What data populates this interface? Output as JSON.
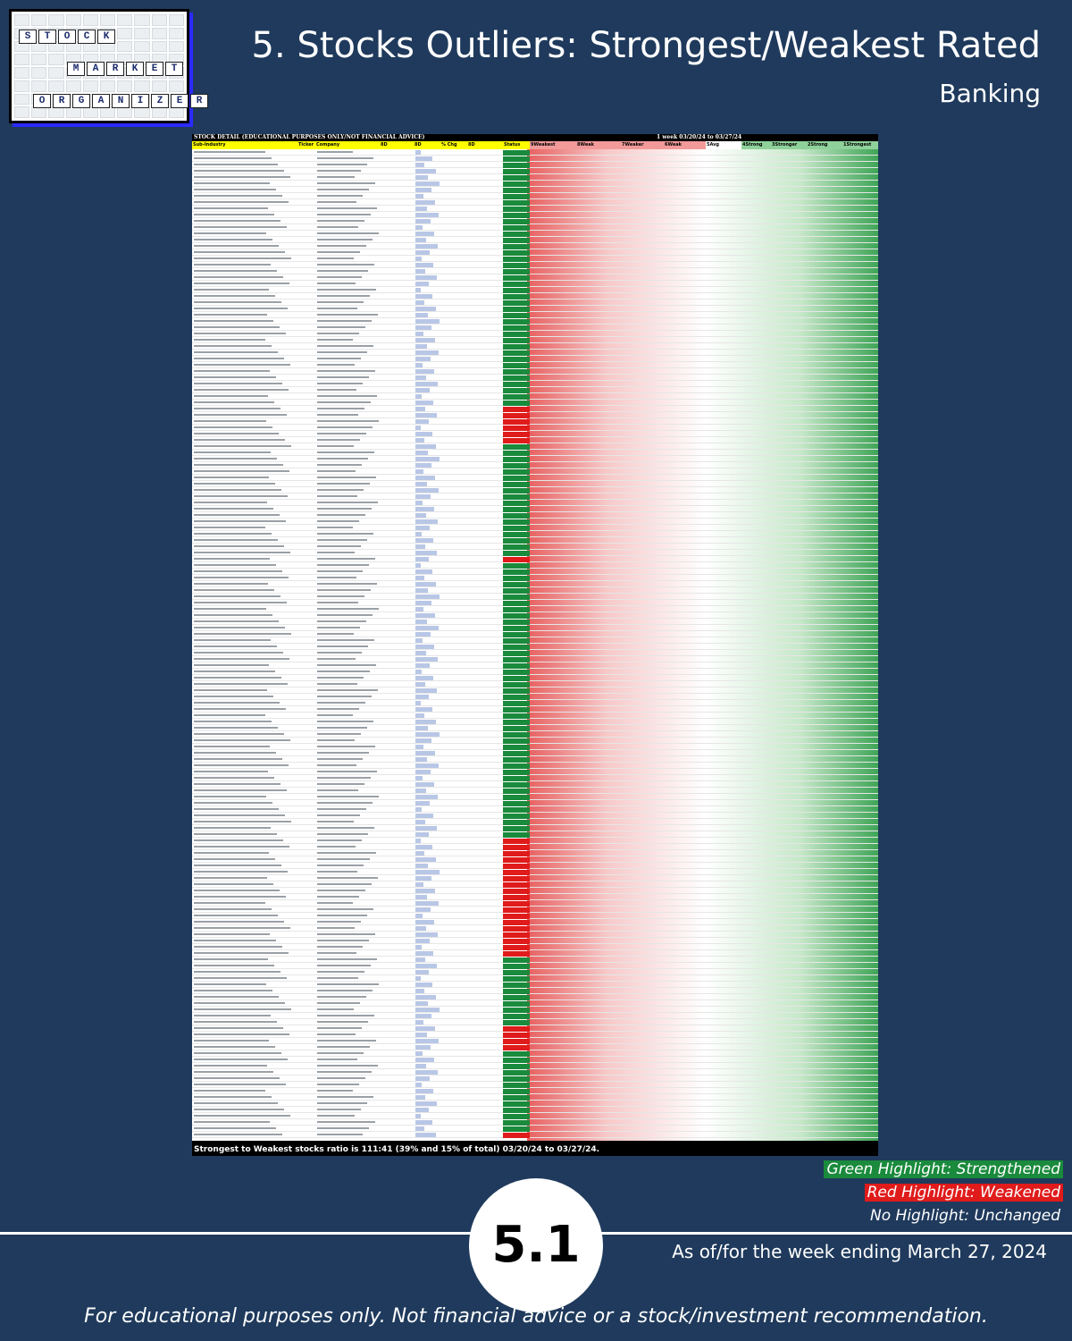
{
  "header": {
    "logo_words": [
      "STOCK",
      "MARKET",
      "ORGANIZER"
    ],
    "title": "5. Stocks Outliers: Strongest/Weakest Rated",
    "subtitle": "Banking"
  },
  "table": {
    "caption_left": "STOCK DETAIL (EDUCATIONAL PURPOSES ONLY/NOT FINANCIAL ADVICE)",
    "caption_right": "1 week 03/20/24 to 03/27/24",
    "columns": [
      "Sub-Industry",
      "Ticker",
      "Company",
      "8D",
      "8D",
      "% Chg",
      "8D",
      "Status",
      "9Weakest",
      "8Weak",
      "7Weaker",
      "6Weak",
      "5Avg",
      "4Strong",
      "3Stronger",
      "2Strong",
      "1Strongest"
    ],
    "summary": "Strongest to Weakest stocks ratio is 111:41 (39% and 15% of total) 03/20/24 to 03/27/24."
  },
  "legend": {
    "green": "Green Highlight: Strengthened",
    "red": "Red Highlight: Weakened",
    "none": "No Highlight: Unchanged"
  },
  "badge_number": "5.1",
  "as_of": "As of/for the week ending March 27, 2024",
  "disclaimer": "For educational purposes only. Not financial advice or a stock/investment recommendation.",
  "colors": {
    "background": "#1f3a5c",
    "strongest": "#1a8a3c",
    "weakest": "#e01b1b",
    "header_yellow": "#ffff00"
  }
}
